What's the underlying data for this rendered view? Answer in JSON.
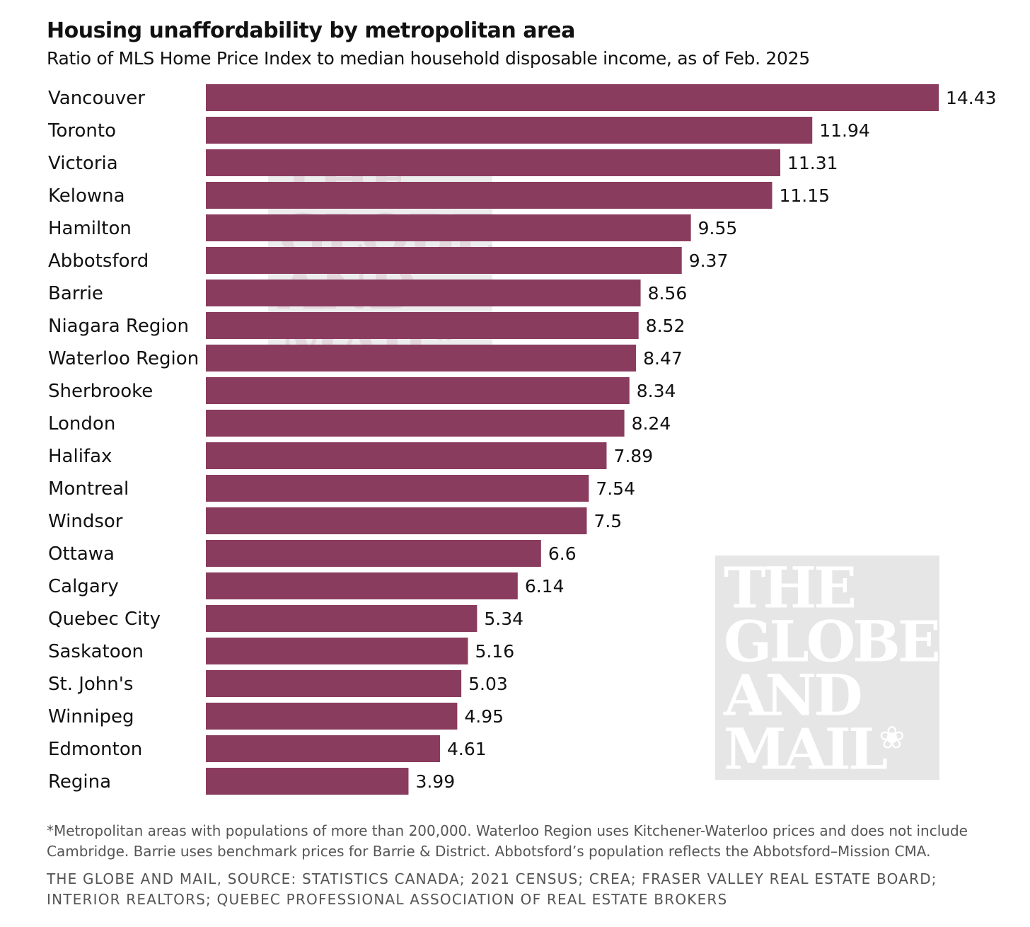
{
  "title": "Housing unaffordability by metropolitan area",
  "subtitle": "Ratio of MLS Home Price Index to median household disposable income, as of Feb. 2025",
  "footnote": "*Metropolitan areas with populations of more than 200,000. Waterloo Region uses Kitchener-Waterloo prices and does not include Cambridge. Barrie uses benchmark prices for Barrie & District. Abbotsford’s population reflects the Abbotsford–Mission CMA.",
  "source": "THE GLOBE AND MAIL, SOURCE: STATISTICS CANADA; 2021 CENSUS; CREA; FRASER VALLEY REAL ESTATE BOARD; INTERIOR REALTORS; QUEBEC PROFESSIONAL ASSOCIATION OF REAL ESTATE BROKERS",
  "watermark": [
    "THE",
    "GLOBE",
    "AND",
    "MAIL"
  ],
  "colors": {
    "bar": "#8a3c5e",
    "watermark_bg": "#e6e6e6"
  },
  "chart_data": {
    "type": "bar",
    "orientation": "horizontal",
    "title": "Housing unaffordability by metropolitan area",
    "subtitle": "Ratio of MLS Home Price Index to median household disposable income, as of Feb. 2025",
    "categories": [
      "Vancouver",
      "Toronto",
      "Victoria",
      "Kelowna",
      "Hamilton",
      "Abbotsford",
      "Barrie",
      "Niagara Region",
      "Waterloo Region",
      "Sherbrooke",
      "London",
      "Halifax",
      "Montreal",
      "Windsor",
      "Ottawa",
      "Calgary",
      "Quebec City",
      "Saskatoon",
      "St. John's",
      "Winnipeg",
      "Edmonton",
      "Regina"
    ],
    "values": [
      14.43,
      11.94,
      11.31,
      11.15,
      9.55,
      9.37,
      8.56,
      8.52,
      8.47,
      8.34,
      8.24,
      7.89,
      7.54,
      7.5,
      6.6,
      6.14,
      5.34,
      5.16,
      5.03,
      4.95,
      4.61,
      3.99
    ],
    "value_labels": [
      "14.43",
      "11.94",
      "11.31",
      "11.15",
      "9.55",
      "9.37",
      "8.56",
      "8.52",
      "8.47",
      "8.34",
      "8.24",
      "7.89",
      "7.54",
      "7.5",
      "6.6",
      "6.14",
      "5.34",
      "5.16",
      "5.03",
      "4.95",
      "4.61",
      "3.99"
    ],
    "xlim": [
      0,
      14.43
    ],
    "grid": false,
    "legend": "none"
  }
}
